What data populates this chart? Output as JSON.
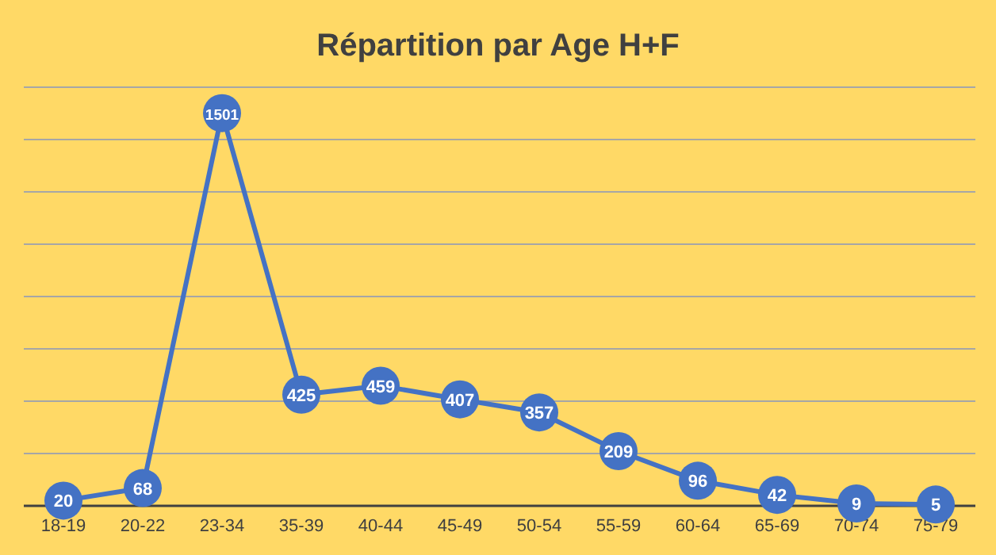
{
  "chart_data": {
    "type": "line",
    "title": "Répartition par Age H+F",
    "categories": [
      "18-19",
      "20-22",
      "23-34",
      "35-39",
      "40-44",
      "45-49",
      "50-54",
      "55-59",
      "60-64",
      "65-69",
      "70-74",
      "75-79"
    ],
    "series": [
      {
        "color": "#4472c4",
        "values": [
          20,
          68,
          1501,
          425,
          459,
          407,
          357,
          209,
          96,
          42,
          9,
          5
        ]
      }
    ],
    "ylim": [
      0,
      1600
    ],
    "yticks": [
      {
        "value": 0,
        "label": null
      },
      {
        "value": 200,
        "label": null
      },
      {
        "value": 400,
        "label": null
      },
      {
        "value": 600,
        "label": null
      },
      {
        "value": 800,
        "label": null
      },
      {
        "value": 1000,
        "label": null
      },
      {
        "value": 1200,
        "label": null
      },
      {
        "value": 1400,
        "label": null
      },
      {
        "value": 1600,
        "label": null
      }
    ],
    "tick_labels": "x",
    "grid": "y",
    "marker": "circle",
    "line_style": "solid",
    "data_labels": true
  }
}
